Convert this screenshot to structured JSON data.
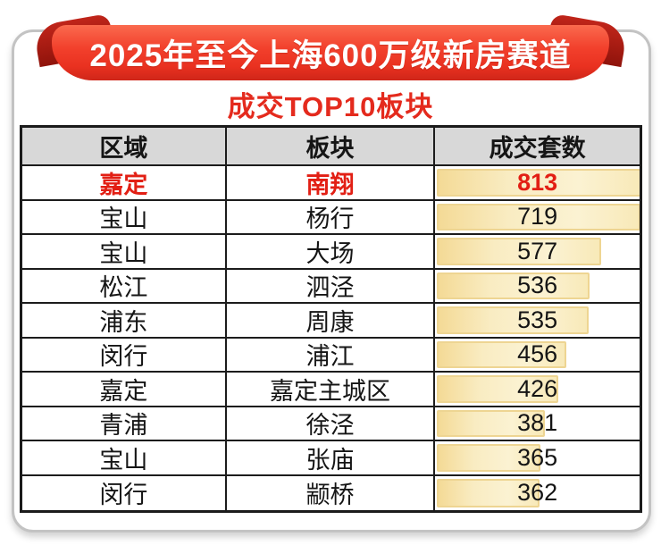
{
  "banner": {
    "title": "2025年至今上海600万级新房赛道"
  },
  "subtitle": {
    "text": "成交TOP10板块"
  },
  "table": {
    "headers": [
      "区域",
      "板块",
      "成交套数"
    ],
    "rows": [
      {
        "district": "嘉定",
        "sector": "南翔",
        "count": "813",
        "bar_pct": 100,
        "highlight": true
      },
      {
        "district": "宝山",
        "sector": "杨行",
        "count": "719",
        "bar_pct": 99.5,
        "highlight": false
      },
      {
        "district": "宝山",
        "sector": "大场",
        "count": "577",
        "bar_pct": 80.3,
        "highlight": false
      },
      {
        "district": "松江",
        "sector": "泗泾",
        "count": "536",
        "bar_pct": 74.5,
        "highlight": false
      },
      {
        "district": "浦东",
        "sector": "周康",
        "count": "535",
        "bar_pct": 74.4,
        "highlight": false
      },
      {
        "district": "闵行",
        "sector": "浦江",
        "count": "456",
        "bar_pct": 63.4,
        "highlight": false
      },
      {
        "district": "嘉定",
        "sector": "嘉定主城区",
        "count": "426",
        "bar_pct": 59.2,
        "highlight": false
      },
      {
        "district": "青浦",
        "sector": "徐泾",
        "count": "381",
        "bar_pct": 53.0,
        "highlight": false
      },
      {
        "district": "宝山",
        "sector": "张庙",
        "count": "365",
        "bar_pct": 50.8,
        "highlight": false
      },
      {
        "district": "闵行",
        "sector": "颛桥",
        "count": "362",
        "bar_pct": 50.3,
        "highlight": false
      }
    ]
  },
  "colors": {
    "ribbon_red": "#f2402c",
    "ribbon_fold_dark_red": "#8f130b",
    "subtitle_red": "#e42a1d",
    "highlight_row_red": "#e21f14",
    "header_gray": "#d8d8d8",
    "table_border_black": "#1b1b1b",
    "data_bar_fill": "#f9ecc2",
    "data_bar_border": "#eed592",
    "card_border_gray": "#c3c3c3"
  },
  "chart_data": {
    "type": "table",
    "title": "2025年至今上海600万级新房赛道",
    "subtitle": "成交TOP10板块",
    "columns": [
      "区域",
      "板块",
      "成交套数"
    ],
    "categories": [
      "南翔",
      "杨行",
      "大场",
      "泗泾",
      "周康",
      "浦江",
      "嘉定主城区",
      "徐泾",
      "张庙",
      "颛桥"
    ],
    "districts": [
      "嘉定",
      "宝山",
      "宝山",
      "松江",
      "浦东",
      "闵行",
      "嘉定",
      "青浦",
      "宝山",
      "闵行"
    ],
    "values": [
      813,
      719,
      577,
      536,
      535,
      456,
      426,
      381,
      365,
      362
    ],
    "max_value": 813,
    "notes": "Top row (嘉定/南翔/813) rendered in bold red; count column contains yellow gradient data bars scaled ~value/719, clipped at 100%"
  }
}
